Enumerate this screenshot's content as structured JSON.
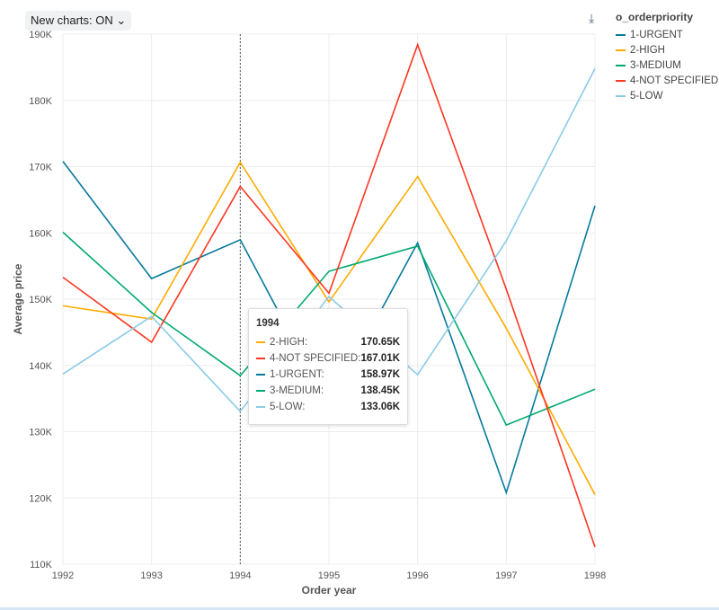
{
  "toolbar": {
    "toggle_label": "New charts: ON",
    "toggle_icon": "chevron-down-icon",
    "download_icon": "download-icon"
  },
  "chart_data": {
    "type": "line",
    "xlabel": "Order year",
    "ylabel": "Average price",
    "x": [
      1992,
      1993,
      1994,
      1995,
      1996,
      1997,
      1998
    ],
    "ylim": [
      110000,
      190000
    ],
    "yticks": [
      110000,
      120000,
      130000,
      140000,
      150000,
      160000,
      170000,
      180000,
      190000
    ],
    "ytick_labels": [
      "110K",
      "120K",
      "130K",
      "140K",
      "150K",
      "160K",
      "170K",
      "180K",
      "190K"
    ],
    "grid": true,
    "legend": {
      "title": "o_orderpriority",
      "placement": "right"
    },
    "series": [
      {
        "name": "1-URGENT",
        "color": "#077a9d",
        "values": [
          170800,
          153100,
          158970,
          133800,
          158500,
          120800,
          164100
        ]
      },
      {
        "name": "2-HIGH",
        "color": "#ffab00",
        "values": [
          149000,
          147000,
          170650,
          149600,
          168500,
          145600,
          120500
        ]
      },
      {
        "name": "3-MEDIUM",
        "color": "#00a972",
        "values": [
          160100,
          148000,
          138450,
          154200,
          158000,
          131000,
          136400
        ]
      },
      {
        "name": "4-NOT SPECIFIED",
        "color": "#ff3621",
        "values": [
          153300,
          143500,
          167010,
          150900,
          188400,
          151500,
          112600
        ]
      },
      {
        "name": "5-LOW",
        "color": "#8bcae7",
        "values": [
          138700,
          147400,
          133060,
          150400,
          138600,
          158800,
          184800
        ]
      }
    ],
    "hover": {
      "x_label": "1994",
      "rows": [
        {
          "name": "2-HIGH:",
          "value": "170.65K",
          "color": "#ffab00"
        },
        {
          "name": "4-NOT SPECIFIED:",
          "value": "167.01K",
          "color": "#ff3621"
        },
        {
          "name": "1-URGENT:",
          "value": "158.97K",
          "color": "#077a9d"
        },
        {
          "name": "3-MEDIUM:",
          "value": "138.45K",
          "color": "#00a972"
        },
        {
          "name": "5-LOW:",
          "value": "133.06K",
          "color": "#8bcae7"
        }
      ]
    }
  }
}
